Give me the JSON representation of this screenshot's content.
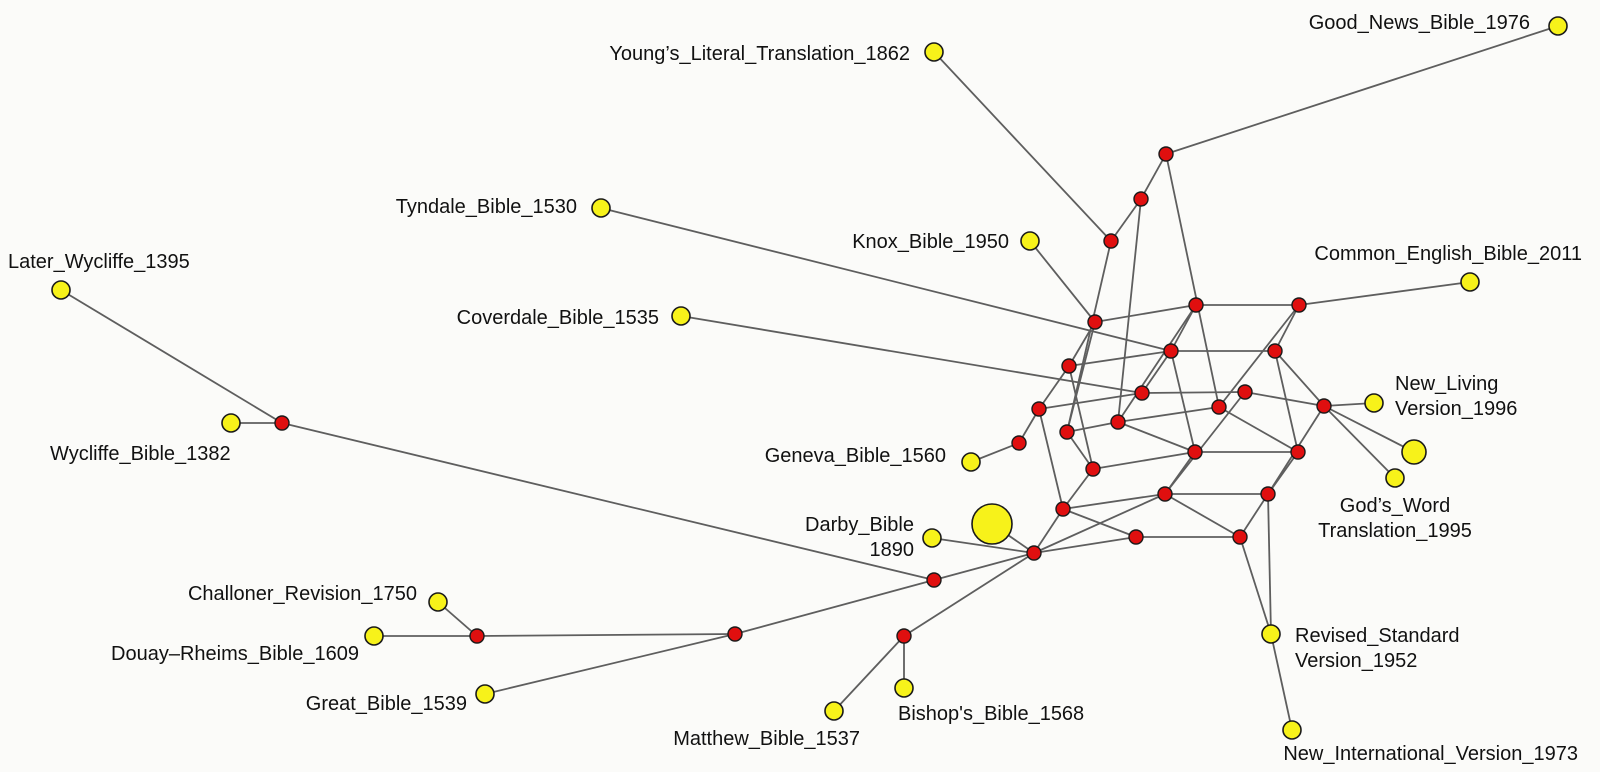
{
  "colors": {
    "taxon_fill": "#f7f21a",
    "internal_fill": "#e00f0f",
    "edge": "#5e5e5e"
  },
  "taxa": [
    {
      "id": "young",
      "label": [
        "Young’s_Literal_Translation_1862"
      ]
    },
    {
      "id": "goodnews",
      "label": [
        "Good_News_Bible_1976"
      ]
    },
    {
      "id": "tyndale",
      "label": [
        "Tyndale_Bible_1530"
      ]
    },
    {
      "id": "knox",
      "label": [
        "Knox_Bible_1950"
      ]
    },
    {
      "id": "ceb",
      "label": [
        "Common_English_Bible_2011"
      ]
    },
    {
      "id": "laterwyc",
      "label": [
        "Later_Wycliffe_1395"
      ]
    },
    {
      "id": "coverdale",
      "label": [
        "Coverdale_Bible_1535"
      ]
    },
    {
      "id": "nlv",
      "label": [
        "New_Living",
        "Version_1996"
      ]
    },
    {
      "id": "wycliffe",
      "label": [
        "Wycliffe_Bible_1382"
      ]
    },
    {
      "id": "geneva",
      "label": [
        "Geneva_Bible_1560"
      ]
    },
    {
      "id": "gods",
      "label": [
        "God’s_Word",
        "Translation_1995"
      ]
    },
    {
      "id": "bigyellow",
      "label": []
    },
    {
      "id": "darby",
      "label": [
        "Darby_Bible",
        "1890"
      ]
    },
    {
      "id": "darbybig",
      "label": []
    },
    {
      "id": "challoner",
      "label": [
        "Challoner_Revision_1750"
      ]
    },
    {
      "id": "douay",
      "label": [
        "Douay–Rheims_Bible_1609"
      ]
    },
    {
      "id": "rsv",
      "label": [
        "Revised_Standard",
        "Version_1952"
      ]
    },
    {
      "id": "great",
      "label": [
        "Great_Bible_1539"
      ]
    },
    {
      "id": "bishops",
      "label": [
        "Bishop's_Bible_1568"
      ]
    },
    {
      "id": "matthew",
      "label": [
        "Matthew_Bible_1537"
      ]
    },
    {
      "id": "niv",
      "label": [
        "New_International_Version_1973"
      ]
    }
  ],
  "edges": [
    [
      "young",
      "i_young"
    ],
    [
      "i_young",
      "i_top2"
    ],
    [
      "i_top2",
      "i_top"
    ],
    [
      "i_top",
      "goodnews"
    ],
    [
      "knox",
      "a1"
    ],
    [
      "tyndale",
      "b2"
    ],
    [
      "coverdale",
      "c2"
    ],
    [
      "geneva",
      "g1"
    ],
    [
      "ceb",
      "a3"
    ],
    [
      "nlv",
      "c4"
    ],
    [
      "gods",
      "c4"
    ],
    [
      "bigyellow",
      "c4"
    ],
    [
      "laterwyc",
      "wyc"
    ],
    [
      "wycliffe",
      "wyc"
    ],
    [
      "wyc",
      "w2"
    ],
    [
      "darby",
      "r"
    ],
    [
      "darbybig",
      "r"
    ],
    [
      "r",
      "w2"
    ],
    [
      "r",
      "bm"
    ],
    [
      "r",
      "d1"
    ],
    [
      "r",
      "d2"
    ],
    [
      "w2",
      "cg"
    ],
    [
      "cg",
      "great"
    ],
    [
      "cg",
      "cd"
    ],
    [
      "cd",
      "douay"
    ],
    [
      "cd",
      "challoner"
    ],
    [
      "bm",
      "bishops"
    ],
    [
      "bm",
      "matthew"
    ],
    [
      "d3",
      "rsv"
    ],
    [
      "rsv",
      "niv"
    ],
    [
      "a1",
      "a2"
    ],
    [
      "a2",
      "a3"
    ],
    [
      "b1",
      "b2"
    ],
    [
      "b2",
      "b3"
    ],
    [
      "c1",
      "c2"
    ],
    [
      "c2",
      "c3"
    ],
    [
      "c3",
      "c4"
    ],
    [
      "e1",
      "e2"
    ],
    [
      "e2",
      "e3"
    ],
    [
      "f1",
      "f2"
    ],
    [
      "f2",
      "f3"
    ],
    [
      "d1",
      "d2"
    ],
    [
      "d2",
      "d3"
    ],
    [
      "a1",
      "b1"
    ],
    [
      "b1",
      "c1"
    ],
    [
      "a2",
      "b2"
    ],
    [
      "b2",
      "c2"
    ],
    [
      "a3",
      "b3"
    ],
    [
      "b3",
      "c4"
    ],
    [
      "e1",
      "f1"
    ],
    [
      "f1",
      "d1"
    ],
    [
      "e2",
      "f2"
    ],
    [
      "f2",
      "d2"
    ],
    [
      "e3",
      "f3"
    ],
    [
      "f3",
      "d3"
    ],
    [
      "a1",
      "e1"
    ],
    [
      "b1",
      "f1"
    ],
    [
      "c1",
      "d1"
    ],
    [
      "a2",
      "e2"
    ],
    [
      "b2",
      "f2"
    ],
    [
      "c3",
      "d2"
    ],
    [
      "a3",
      "e3"
    ],
    [
      "b3",
      "f3"
    ],
    [
      "c4",
      "d3"
    ],
    [
      "i_young",
      "e1"
    ],
    [
      "i_top2",
      "e2"
    ],
    [
      "i_top",
      "e3"
    ],
    [
      "g1",
      "c1"
    ]
  ]
}
